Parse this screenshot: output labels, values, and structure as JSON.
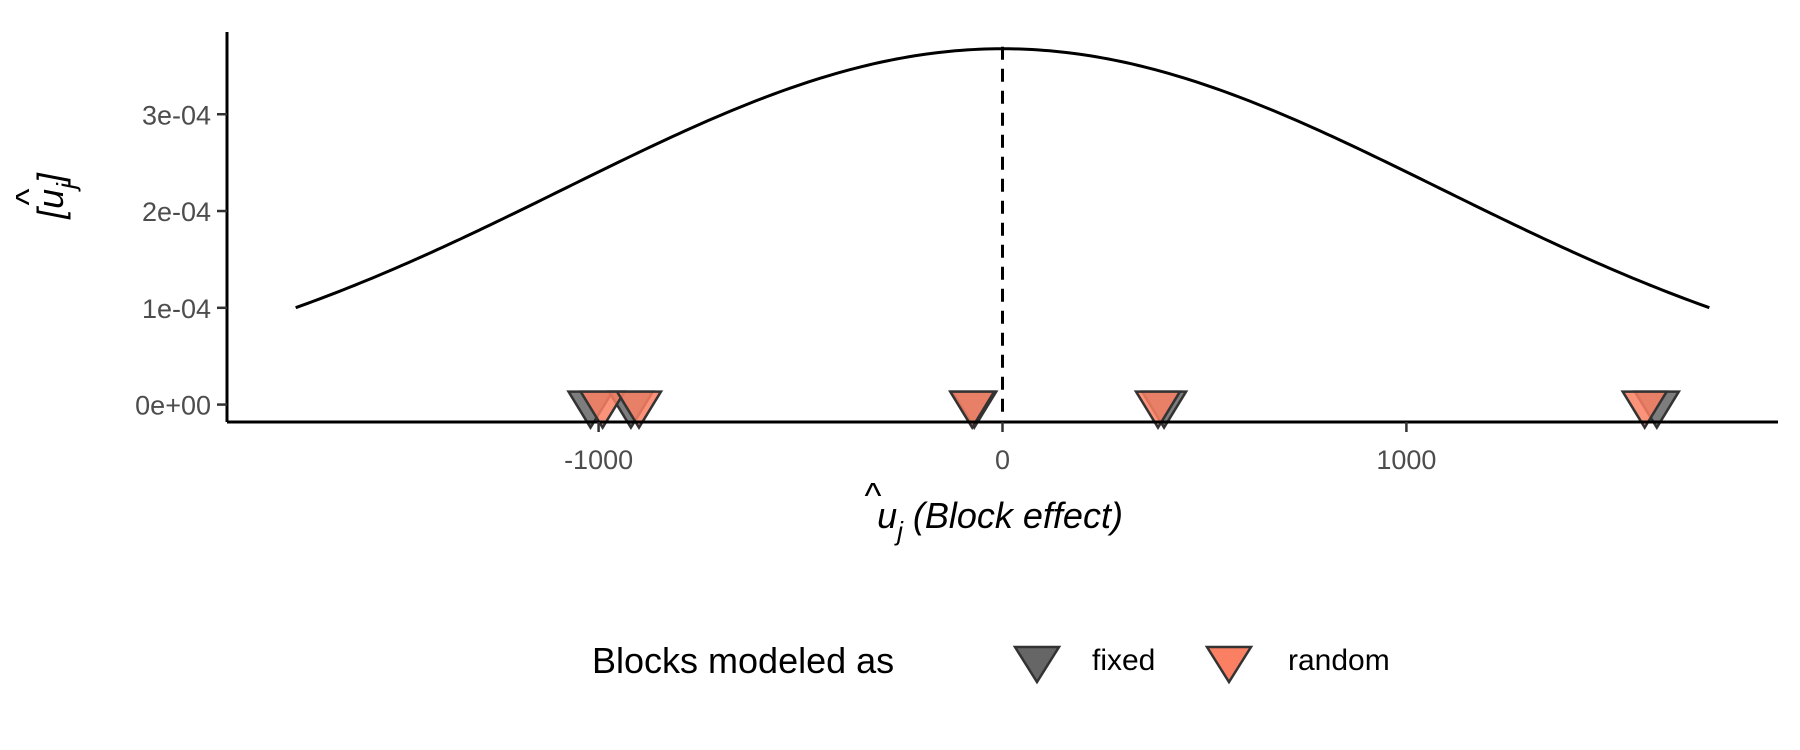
{
  "chart_data": {
    "type": "line",
    "xlabel": {
      "hat": "^",
      "base": "u",
      "sub": "j",
      "rest": " (Block effect)"
    },
    "ylabel": {
      "open": "[",
      "hat": "^",
      "base": "u",
      "sub": "j",
      "close": "]"
    },
    "xlim": [
      -1920,
      1920
    ],
    "ylim": [
      -1.8e-05,
      0.000385
    ],
    "x_ticks": [
      -1000,
      0,
      1000
    ],
    "x_tick_labels": [
      "-1000",
      "0",
      "1000"
    ],
    "y_ticks": [
      0,
      0.0001,
      0.0002,
      0.0003
    ],
    "y_tick_labels": [
      "0e+00",
      "1e-04",
      "2e-04",
      "3e-04"
    ],
    "density_curve": {
      "distribution": "normal",
      "mean": 0,
      "sd": 1085,
      "x_range": [
        -1750,
        1750
      ]
    },
    "reference_line": {
      "x": 0,
      "style": "dashed"
    },
    "points": {
      "y": 0,
      "series": [
        {
          "name": "fixed",
          "color": "#666666",
          "x": [
            -1020,
            -920,
            -70,
            400,
            1620
          ]
        },
        {
          "name": "random",
          "color": "#fa7f63",
          "x": [
            -990,
            -900,
            -75,
            385,
            1590
          ]
        }
      ]
    },
    "legend": {
      "title": "Blocks modeled as",
      "position": "bottom",
      "items": [
        "fixed",
        "random"
      ]
    },
    "grid": false
  }
}
